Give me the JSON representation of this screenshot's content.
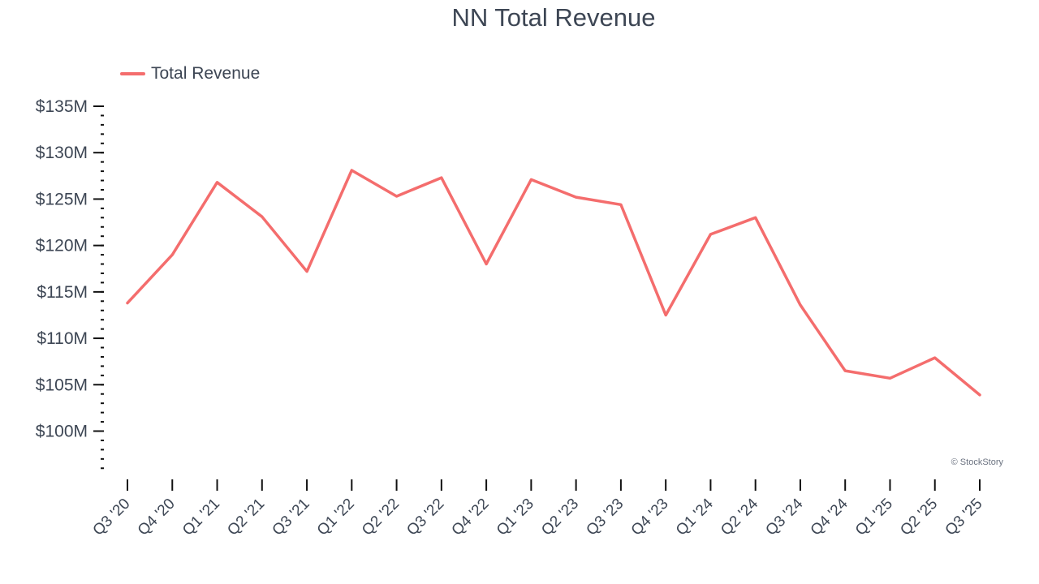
{
  "title": "NN Total Revenue",
  "credit": "© StockStory",
  "colors": {
    "series": "#f46d6d",
    "text": "#3d4654",
    "axis": "#111111"
  },
  "chart_data": {
    "type": "line",
    "title": "NN Total Revenue",
    "xlabel": "",
    "ylabel": "",
    "ylim": [
      95.5,
      135
    ],
    "grid": false,
    "legend": "top-left",
    "yticks": [
      100,
      105,
      110,
      115,
      120,
      125,
      130,
      135
    ],
    "ytick_labels": [
      "$100M",
      "$105M",
      "$110M",
      "$115M",
      "$120M",
      "$125M",
      "$130M",
      "$135M"
    ],
    "categories": [
      "Q3 '20",
      "Q4 '20",
      "Q1 '21",
      "Q2 '21",
      "Q3 '21",
      "Q1 '22",
      "Q2 '22",
      "Q3 '22",
      "Q4 '22",
      "Q1 '23",
      "Q2 '23",
      "Q3 '23",
      "Q4 '23",
      "Q1 '24",
      "Q2 '24",
      "Q3 '24",
      "Q4 '24",
      "Q1 '25",
      "Q2 '25",
      "Q3 '25"
    ],
    "series": [
      {
        "name": "Total Revenue",
        "color": "#f46d6d",
        "values": [
          113.8,
          119.0,
          126.8,
          123.1,
          117.2,
          128.1,
          125.3,
          127.3,
          118.0,
          127.1,
          125.2,
          124.4,
          112.5,
          121.2,
          123.0,
          113.6,
          106.5,
          105.7,
          107.9,
          103.9
        ]
      }
    ]
  }
}
